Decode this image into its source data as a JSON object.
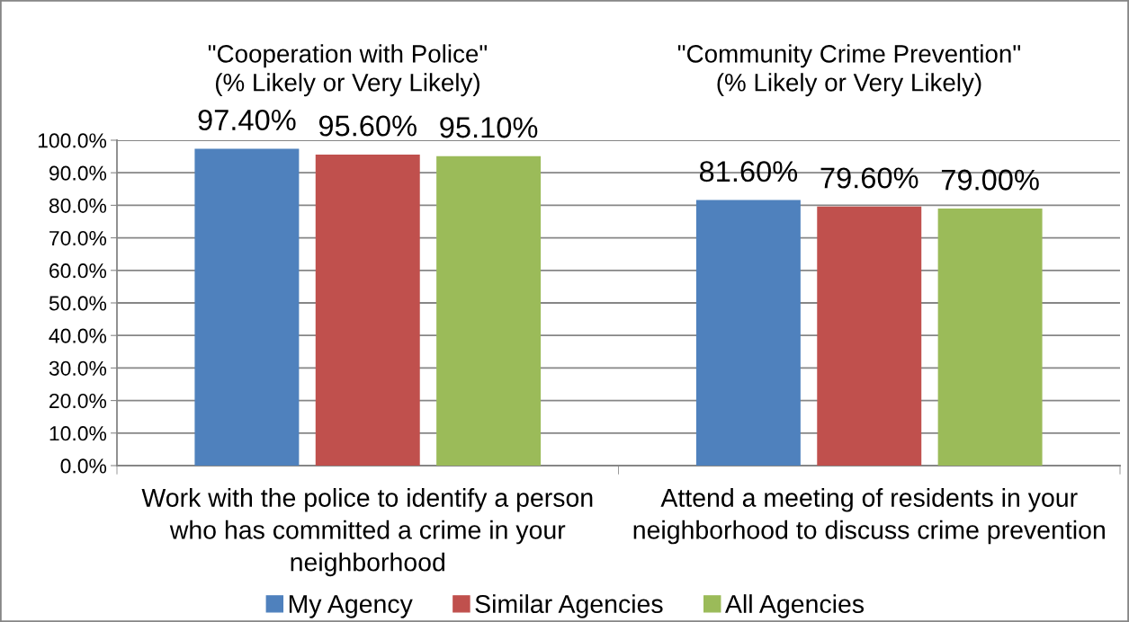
{
  "chart_data": {
    "type": "bar",
    "categories": [
      "Work with the police to identify a person who has committed a crime in your neighborhood",
      "Attend a meeting of residents in your neighborhood to discuss crime prevention"
    ],
    "series": [
      {
        "name": "My Agency",
        "color": "#4f81bd",
        "values": [
          97.4,
          81.6
        ],
        "value_labels": [
          "97.40%",
          "81.60%"
        ]
      },
      {
        "name": "Similar Agencies",
        "color": "#c0504d",
        "values": [
          95.6,
          79.6
        ],
        "value_labels": [
          "95.60%",
          "79.60%"
        ]
      },
      {
        "name": "All Agencies",
        "color": "#9bbb59",
        "values": [
          95.1,
          79.0
        ],
        "value_labels": [
          "95.10%",
          "79.00%"
        ]
      }
    ],
    "ylim": [
      0,
      100
    ],
    "yticks": [
      {
        "value": 0,
        "label": "0.0%"
      },
      {
        "value": 10,
        "label": "10.0%"
      },
      {
        "value": 20,
        "label": "20.0%"
      },
      {
        "value": 30,
        "label": "30.0%"
      },
      {
        "value": 40,
        "label": "40.0%"
      },
      {
        "value": 50,
        "label": "50.0%"
      },
      {
        "value": 60,
        "label": "60.0%"
      },
      {
        "value": 70,
        "label": "70.0%"
      },
      {
        "value": 80,
        "label": "80.0%"
      },
      {
        "value": 90,
        "label": "90.0%"
      },
      {
        "value": 100,
        "label": "100.0%"
      }
    ],
    "grid": "y",
    "legend": "bottom",
    "annotations": [
      "\"Cooperation with Police\"\n(% Likely or Very Likely)",
      "\"Community Crime Prevention\"\n(% Likely or Very Likely)"
    ]
  }
}
